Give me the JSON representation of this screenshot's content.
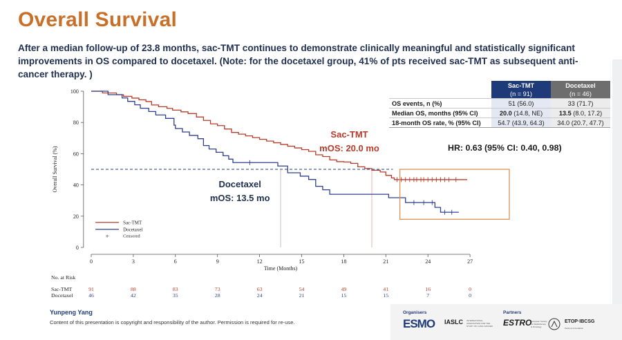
{
  "title": "Overall Survival",
  "subtitle": "After a median follow-up of 23.8 months, sac-TMT continues to demonstrate clinically meaningful and statistically significant improvements in OS compared to docetaxel. (Note: for the docetaxel group, 41% of pts received sac-TMT as subsequent anti-cancer therapy. )",
  "colors": {
    "sac": "#b83a28",
    "doc": "#2d3f8f",
    "title": "#c8702a",
    "box": "#d8925a"
  },
  "table": {
    "col1_header": "Sac-TMT",
    "col1_sub": "(n = 91)",
    "col2_header": "Docetaxel",
    "col2_sub": "(n = 46)",
    "rows": [
      {
        "label": "OS events, n (%)",
        "sac": "51 (56.0)",
        "doc": "33 (71.7)"
      },
      {
        "label": "Median OS, months (95% CI)",
        "sac_bold": "20.0",
        "sac_rest": " (14.8, NE)",
        "doc_bold": "13.5",
        "doc_rest": " (8.0, 17.2)"
      },
      {
        "label": "18-month OS rate, % (95% CI)",
        "sac": "54.7 (43.9, 64.3)",
        "doc": "34.0 (20.7, 47.7)"
      }
    ]
  },
  "hr_text": "HR: 0.63 (95% CI: 0.40, 0.98)",
  "footer": {
    "presenter": "Yunpeng Yang",
    "copyright": "Content of this presentation is copyright and responsibility of the author. Permission is required for re-use.",
    "organisers_label": "Organisers",
    "partners_label": "Partners",
    "esmo": "ESMO",
    "iaslc": "IASLC",
    "iaslc_sub": "INTERNATIONAL ASSOCIATION FOR THE STUDY OF LUNG CANCER",
    "estro": "ESTRO",
    "estro_sub": "European Society for Radiotherapy & Oncology",
    "etop": "ETOP·IBCSG",
    "etop_sub": "Partners Foundation"
  },
  "chart_data": {
    "type": "line",
    "xlabel": "Time (Months)",
    "ylabel": "Overall Survival (%)",
    "xlim": [
      0,
      27
    ],
    "ylim": [
      0,
      100
    ],
    "xticks": [
      0,
      3,
      6,
      9,
      12,
      15,
      18,
      21,
      24,
      27
    ],
    "yticks": [
      0,
      20,
      40,
      60,
      80,
      100
    ],
    "legend": {
      "placement": "bottom-left",
      "entries": [
        "Sac-TMT",
        "Docetaxel",
        "Censored"
      ]
    },
    "median_line_y": 50,
    "series": [
      {
        "name": "Sac-TMT",
        "annotation": [
          "Sac-TMT",
          "mOS: 20.0 mo"
        ],
        "median_x": 20.0,
        "steps": [
          [
            0,
            100
          ],
          [
            0.8,
            98.9
          ],
          [
            1.8,
            97.8
          ],
          [
            2.3,
            96.7
          ],
          [
            2.9,
            95.6
          ],
          [
            3.4,
            94.5
          ],
          [
            3.9,
            93.4
          ],
          [
            4.3,
            91.2
          ],
          [
            4.8,
            90.1
          ],
          [
            5.4,
            89.0
          ],
          [
            5.8,
            87.9
          ],
          [
            6.4,
            86.8
          ],
          [
            6.9,
            85.7
          ],
          [
            7.5,
            83.5
          ],
          [
            8.0,
            81.3
          ],
          [
            8.5,
            79.1
          ],
          [
            9.0,
            78.0
          ],
          [
            9.5,
            75.8
          ],
          [
            10.0,
            73.6
          ],
          [
            10.5,
            72.5
          ],
          [
            11.0,
            71.4
          ],
          [
            11.5,
            70.3
          ],
          [
            12.0,
            69.2
          ],
          [
            12.5,
            68.1
          ],
          [
            13.0,
            67.0
          ],
          [
            13.5,
            65.9
          ],
          [
            14.0,
            64.8
          ],
          [
            14.5,
            63.7
          ],
          [
            15.0,
            62.6
          ],
          [
            15.5,
            61.5
          ],
          [
            16.0,
            59.3
          ],
          [
            16.5,
            58.2
          ],
          [
            17.0,
            56.0
          ],
          [
            17.5,
            54.9
          ],
          [
            18.0,
            54.7
          ],
          [
            18.5,
            53.8
          ],
          [
            19.0,
            51.6
          ],
          [
            19.5,
            50.5
          ],
          [
            20.0,
            49.4
          ],
          [
            20.6,
            48.3
          ],
          [
            21.0,
            46.1
          ],
          [
            21.4,
            44.5
          ],
          [
            21.6,
            43.4
          ],
          [
            26.8,
            43.4
          ]
        ],
        "censored": [
          21.8,
          22.1,
          22.4,
          22.7,
          23.0,
          23.2,
          23.5,
          23.7,
          24.0,
          24.3,
          24.6,
          24.9,
          25.2,
          25.5,
          26.0
        ]
      },
      {
        "name": "Docetaxel",
        "annotation": [
          "Docetaxel",
          "mOS: 13.5 mo"
        ],
        "median_x": 13.5,
        "steps": [
          [
            0,
            100
          ],
          [
            1.2,
            97.8
          ],
          [
            2.2,
            95.7
          ],
          [
            2.6,
            93.5
          ],
          [
            3.1,
            91.3
          ],
          [
            3.5,
            89.1
          ],
          [
            4.1,
            87.0
          ],
          [
            4.6,
            84.8
          ],
          [
            5.3,
            82.6
          ],
          [
            5.9,
            78.3
          ],
          [
            6.0,
            76.1
          ],
          [
            6.5,
            73.9
          ],
          [
            7.0,
            71.7
          ],
          [
            7.6,
            69.6
          ],
          [
            8.0,
            65.2
          ],
          [
            8.4,
            63.0
          ],
          [
            8.9,
            60.9
          ],
          [
            9.4,
            58.7
          ],
          [
            9.8,
            56.5
          ],
          [
            10.1,
            54.3
          ],
          [
            13.3,
            52.1
          ],
          [
            14.0,
            47.8
          ],
          [
            14.9,
            45.6
          ],
          [
            15.5,
            43.5
          ],
          [
            16.0,
            39.1
          ],
          [
            16.5,
            36.9
          ],
          [
            17.0,
            34.0
          ],
          [
            21.2,
            31.8
          ],
          [
            22.4,
            28.7
          ],
          [
            24.5,
            25.6
          ],
          [
            24.9,
            22.5
          ],
          [
            26.2,
            22.5
          ]
        ],
        "censored": [
          11.3,
          22.0,
          23.0,
          23.7,
          24.3,
          25.2,
          25.7
        ]
      }
    ],
    "zoom_box": {
      "x": [
        22.0,
        29.8
      ],
      "y": [
        18,
        50
      ]
    },
    "at_risk": {
      "title": "No. at Risk",
      "rows": [
        {
          "name": "Sac-TMT",
          "values": [
            91,
            88,
            83,
            73,
            63,
            54,
            49,
            41,
            16,
            0
          ]
        },
        {
          "name": "Docetaxel",
          "values": [
            46,
            42,
            35,
            28,
            24,
            21,
            15,
            15,
            7,
            0
          ]
        }
      ]
    }
  }
}
